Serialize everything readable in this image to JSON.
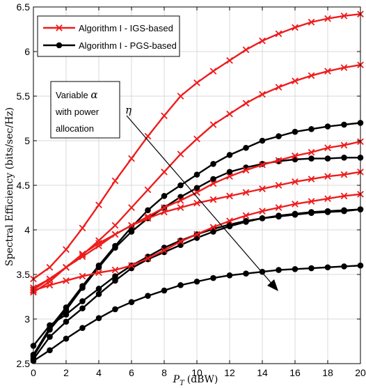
{
  "chart_data": {
    "type": "line",
    "xlabel_main": "P",
    "xlabel_sub": "T",
    "xlabel_unit": "(dBW)",
    "ylabel": "Spectral Efficiency (bits/sec/Hz)",
    "xlim": [
      0,
      20
    ],
    "ylim": [
      2.5,
      6.5
    ],
    "xticks": [
      0,
      2,
      4,
      6,
      8,
      10,
      12,
      14,
      16,
      18,
      20
    ],
    "yticks": [
      2.5,
      3,
      3.5,
      4,
      4.5,
      5,
      5.5,
      6,
      6.5
    ],
    "xtick_labels": [
      "0",
      "2",
      "4",
      "6",
      "8",
      "10",
      "12",
      "14",
      "16",
      "18",
      "20"
    ],
    "ytick_labels": [
      "2.5",
      "3",
      "3.5",
      "4",
      "4.5",
      "5",
      "5.5",
      "6",
      "6.5"
    ],
    "grid": true,
    "legend_position": "top-left",
    "legend": [
      {
        "label": "Algorithm I - IGS-based",
        "color": "#ee1c1c",
        "marker": "x"
      },
      {
        "label": "Algorithm I - PGS-based",
        "color": "#000000",
        "marker": "o"
      }
    ],
    "annotation": {
      "text_line1": "Variable ",
      "alpha": "α",
      "text_line2": "with power",
      "text_line3": "allocation",
      "eta": "η"
    },
    "x": [
      0,
      1,
      2,
      3,
      4,
      5,
      6,
      7,
      8,
      9,
      10,
      11,
      12,
      13,
      14,
      15,
      16,
      17,
      18,
      19,
      20
    ],
    "series": [
      {
        "group": "IGS",
        "color": "#ee1c1c",
        "values": [
          3.45,
          3.58,
          3.78,
          4.02,
          4.28,
          4.55,
          4.8,
          5.05,
          5.28,
          5.5,
          5.65,
          5.78,
          5.9,
          6.02,
          6.12,
          6.2,
          6.27,
          6.33,
          6.37,
          6.4,
          6.42
        ]
      },
      {
        "group": "IGS",
        "color": "#ee1c1c",
        "values": [
          3.35,
          3.45,
          3.58,
          3.72,
          3.88,
          4.05,
          4.25,
          4.45,
          4.65,
          4.85,
          5.02,
          5.18,
          5.3,
          5.42,
          5.52,
          5.6,
          5.67,
          5.73,
          5.78,
          5.82,
          5.85
        ]
      },
      {
        "group": "IGS",
        "color": "#ee1c1c",
        "values": [
          3.33,
          3.45,
          3.58,
          3.7,
          3.82,
          3.95,
          4.05,
          4.15,
          4.25,
          4.33,
          4.42,
          4.52,
          4.6,
          4.67,
          4.73,
          4.78,
          4.83,
          4.87,
          4.92,
          4.95,
          4.99
        ]
      },
      {
        "group": "IGS",
        "color": "#ee1c1c",
        "values": [
          3.3,
          3.42,
          3.58,
          3.73,
          3.85,
          3.95,
          4.05,
          4.13,
          4.2,
          4.25,
          4.3,
          4.34,
          4.38,
          4.42,
          4.46,
          4.5,
          4.54,
          4.57,
          4.6,
          4.62,
          4.65
        ]
      },
      {
        "group": "IGS",
        "color": "#ee1c1c",
        "values": [
          3.32,
          3.38,
          3.43,
          3.48,
          3.52,
          3.55,
          3.6,
          3.68,
          3.77,
          3.87,
          3.95,
          4.03,
          4.1,
          4.16,
          4.21,
          4.25,
          4.29,
          4.32,
          4.35,
          4.38,
          4.4
        ]
      },
      {
        "group": "PGS",
        "color": "#000000",
        "values": [
          2.6,
          2.9,
          3.13,
          3.37,
          3.6,
          3.82,
          4.03,
          4.22,
          4.38,
          4.5,
          4.62,
          4.74,
          4.84,
          4.92,
          5.0,
          5.05,
          5.1,
          5.13,
          5.16,
          5.18,
          5.2
        ]
      },
      {
        "group": "PGS",
        "color": "#000000",
        "values": [
          2.58,
          2.88,
          3.1,
          3.35,
          3.58,
          3.8,
          3.98,
          4.13,
          4.25,
          4.37,
          4.47,
          4.57,
          4.65,
          4.7,
          4.74,
          4.77,
          4.79,
          4.8,
          4.8,
          4.81,
          4.81
        ]
      },
      {
        "group": "PGS",
        "color": "#000000",
        "values": [
          2.7,
          2.93,
          3.05,
          3.2,
          3.34,
          3.48,
          3.6,
          3.7,
          3.8,
          3.88,
          3.95,
          4.01,
          4.06,
          4.1,
          4.13,
          4.15,
          4.17,
          4.19,
          4.2,
          4.21,
          4.23
        ]
      },
      {
        "group": "PGS",
        "color": "#000000",
        "values": [
          2.55,
          2.8,
          2.97,
          3.12,
          3.28,
          3.43,
          3.57,
          3.67,
          3.75,
          3.83,
          3.91,
          3.98,
          4.04,
          4.09,
          4.13,
          4.16,
          4.18,
          4.2,
          4.21,
          4.22,
          4.23
        ]
      },
      {
        "group": "PGS",
        "color": "#000000",
        "values": [
          2.53,
          2.65,
          2.78,
          2.9,
          3.01,
          3.11,
          3.19,
          3.26,
          3.32,
          3.38,
          3.42,
          3.46,
          3.49,
          3.51,
          3.53,
          3.55,
          3.56,
          3.57,
          3.58,
          3.59,
          3.6
        ]
      }
    ]
  }
}
